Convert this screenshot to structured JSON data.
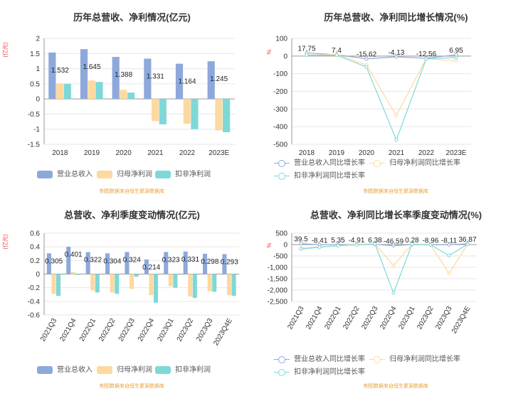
{
  "source_note": "制图数据来自恒生聚源数据库",
  "colors": {
    "revenue": "#8da9db",
    "net_profit": "#fdd9a0",
    "deducted_profit": "#7fd8d8",
    "axis": "#999999",
    "grid": "#e6e6e6",
    "unit": "#e33c3c"
  },
  "chart_data": [
    {
      "type": "bar",
      "title": "历年总营收、净利情况(亿元)",
      "ylabel": "(亿元)",
      "ylim": [
        -1.5,
        2
      ],
      "yticks": [
        -1.5,
        -1,
        -0.5,
        0,
        0.5,
        1,
        1.5,
        2
      ],
      "categories": [
        "2018",
        "2019",
        "2020",
        "2021",
        "2022",
        "2023E"
      ],
      "series": [
        {
          "name": "营业总收入",
          "values": [
            1.532,
            1.645,
            1.388,
            1.331,
            1.164,
            1.245
          ]
        },
        {
          "name": "归母净利润",
          "values": [
            0.51,
            0.61,
            0.3,
            -0.73,
            -0.82,
            -1.04
          ]
        },
        {
          "name": "扣非净利润",
          "values": [
            0.5,
            0.56,
            0.21,
            -0.84,
            -1.0,
            -1.1
          ]
        }
      ],
      "data_labels": [
        "1.532",
        "1.645",
        "1.388",
        "1.331",
        "1.164",
        "1.245"
      ]
    },
    {
      "type": "line",
      "title": "历年总营收、净利同比增长情况(%)",
      "ylabel": "%",
      "ylim": [
        -500,
        100
      ],
      "yticks": [
        -500,
        -400,
        -300,
        -200,
        -100,
        0,
        100
      ],
      "categories": [
        "2018",
        "2019",
        "2020",
        "2021",
        "2022",
        "2023E"
      ],
      "series": [
        {
          "name": "营业总收入同比增长率",
          "values": [
            17.75,
            7.4,
            -15.62,
            -4.13,
            -12.56,
            6.95
          ]
        },
        {
          "name": "归母净利润同比增长率",
          "values": [
            5,
            10,
            -50,
            -337,
            -15,
            -27
          ]
        },
        {
          "name": "扣非净利润同比增长率",
          "values": [
            5,
            5,
            -62,
            -475,
            -16,
            -8
          ]
        }
      ],
      "data_labels": [
        "17.75",
        "7.4",
        "-15.62",
        "-4.13",
        "-12.56",
        "6.95"
      ]
    },
    {
      "type": "bar",
      "title": "总营收、净利季度变动情况(亿元)",
      "ylabel": "(亿元)",
      "ylim": [
        -0.6,
        0.6
      ],
      "yticks": [
        -0.6,
        -0.4,
        -0.2,
        0,
        0.2,
        0.4,
        0.6
      ],
      "categories": [
        "2021Q3",
        "2021Q4",
        "2022Q1",
        "2022Q2",
        "2022Q3",
        "2022Q4",
        "2023Q1",
        "2023Q2",
        "2023Q3",
        "2023Q4E"
      ],
      "series": [
        {
          "name": "营业总收入",
          "values": [
            0.305,
            0.401,
            0.322,
            0.304,
            0.324,
            0.214,
            0.323,
            0.331,
            0.298,
            0.293
          ]
        },
        {
          "name": "归母净利润",
          "values": [
            -0.29,
            0.03,
            -0.24,
            -0.27,
            -0.22,
            -0.31,
            -0.18,
            -0.33,
            -0.25,
            -0.31
          ]
        },
        {
          "name": "扣非净利润",
          "values": [
            -0.32,
            -0.01,
            -0.27,
            -0.29,
            -0.04,
            -0.42,
            -0.2,
            -0.35,
            -0.26,
            -0.32
          ]
        }
      ],
      "data_labels": [
        "0.305",
        "0.401",
        "0.322",
        "0.304",
        "0.324",
        "0.214",
        "0.323",
        "0.331",
        "0.298",
        "0.293"
      ]
    },
    {
      "type": "line",
      "title": "总营收、净利同比增长率季度变动情况(%)",
      "ylabel": "%",
      "ylim": [
        -2500,
        500
      ],
      "yticks": [
        -2500,
        -2000,
        -1500,
        -1000,
        -500,
        0,
        500
      ],
      "categories": [
        "2021Q3",
        "2021Q4",
        "2022Q1",
        "2022Q2",
        "2022Q3",
        "2022Q4",
        "2023Q1",
        "2023Q2",
        "2023Q3",
        "2023Q4E"
      ],
      "series": [
        {
          "name": "营业总收入同比增长率",
          "values": [
            39.5,
            -8.41,
            5.35,
            -4.91,
            6.38,
            -46.59,
            0.28,
            -8.96,
            -8.11,
            36.87
          ]
        },
        {
          "name": "归母净利润同比增长率",
          "values": [
            -150,
            -100,
            -40,
            10,
            20,
            -920,
            10,
            0,
            -1270,
            0
          ]
        },
        {
          "name": "扣非净利润同比增长率",
          "values": [
            -200,
            -120,
            -50,
            -10,
            30,
            -2130,
            20,
            -10,
            -480,
            10
          ]
        }
      ],
      "data_labels": [
        "39.5",
        "-8.41",
        "5.35",
        "-4.91",
        "6.38",
        "-46.59",
        "0.28",
        "-8.96",
        "-8.11",
        "36.87"
      ]
    }
  ]
}
